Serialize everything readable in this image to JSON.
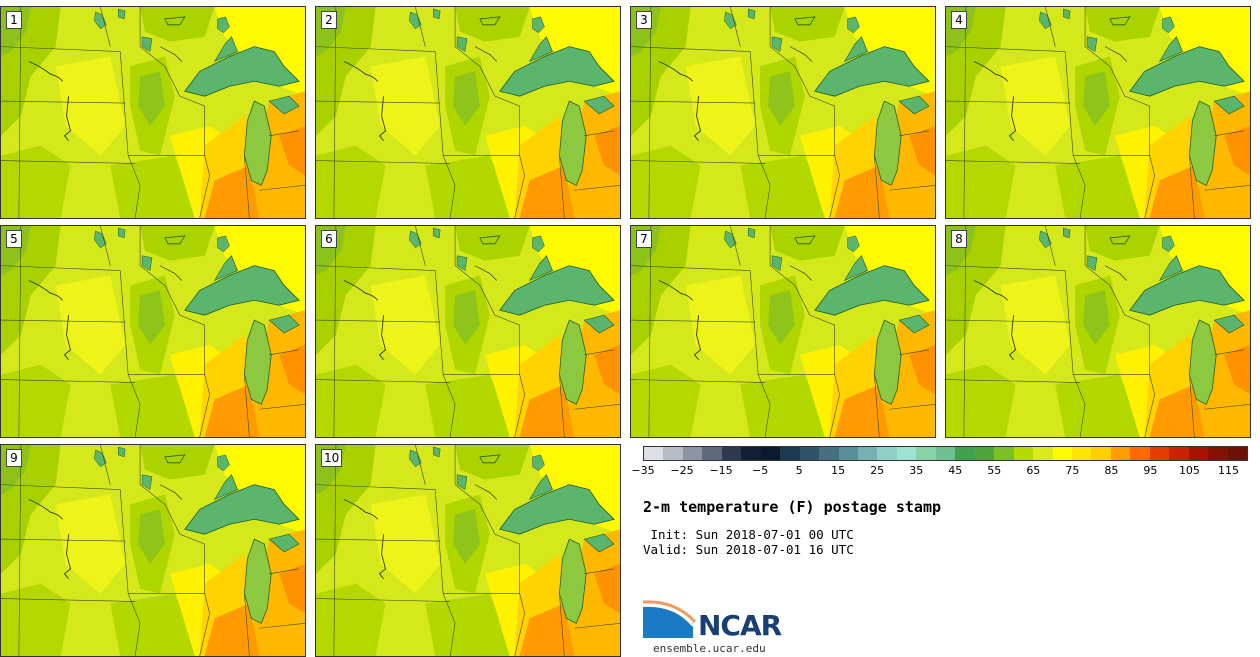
{
  "members": [
    "1",
    "2",
    "3",
    "4",
    "5",
    "6",
    "7",
    "8",
    "9",
    "10"
  ],
  "colorbar": {
    "ticks": [
      "−35",
      "−25",
      "−15",
      "−5",
      "5",
      "15",
      "25",
      "35",
      "45",
      "55",
      "65",
      "75",
      "85",
      "95",
      "105",
      "115"
    ],
    "colors": [
      "#dcdfe5",
      "#b6bcc6",
      "#8c95a3",
      "#5f6a7c",
      "#2c3b52",
      "#131f33",
      "#0b1a2e",
      "#1e3a50",
      "#2f5467",
      "#44707f",
      "#5b8f98",
      "#76b0b0",
      "#8fd0c9",
      "#9de3d4",
      "#86d3a8",
      "#6ec090",
      "#3fa34d",
      "#4ea53c",
      "#7bc026",
      "#b5da00",
      "#d9ec1a",
      "#fffa00",
      "#ffe400",
      "#ffcf00",
      "#ff9d00",
      "#ff6a00",
      "#e83d00",
      "#c92300",
      "#a61400",
      "#851200",
      "#6b1205"
    ]
  },
  "title": "2-m temperature (F) postage stamp",
  "init": " Init: Sun 2018-07-01 00 UTC",
  "valid": "Valid: Sun 2018-07-01 16 UTC",
  "logo": {
    "name": "NCAR",
    "url": "ensemble.ucar.edu"
  }
}
